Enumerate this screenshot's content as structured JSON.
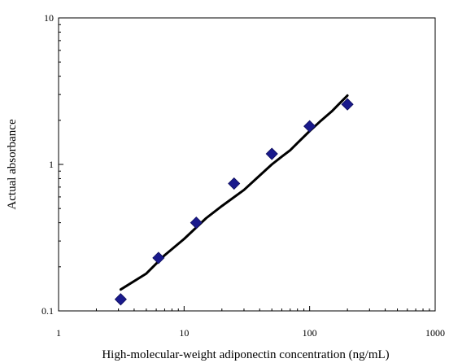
{
  "chart_data": {
    "type": "scatter",
    "title": "",
    "xlabel": "High-molecular-weight adiponectin concentration (ng/mL)",
    "ylabel": "Actual absorbance",
    "x_scale": "log",
    "y_scale": "log",
    "xlim": [
      1,
      1000
    ],
    "ylim": [
      0.1,
      10
    ],
    "x_ticks": [
      "1",
      "10",
      "100",
      "1000"
    ],
    "y_ticks": [
      "0.1",
      "1",
      "10"
    ],
    "grid": false,
    "legend": "none",
    "series": [
      {
        "type": "scatter",
        "marker": "diamond",
        "color": "#1a1a8c",
        "x": [
          3.125,
          6.25,
          12.5,
          25,
          50,
          100,
          200
        ],
        "y": [
          0.12,
          0.23,
          0.4,
          0.74,
          1.18,
          1.82,
          2.57
        ]
      },
      {
        "type": "line",
        "color": "#000000",
        "x": [
          3.125,
          5,
          7,
          10,
          15,
          20,
          30,
          40,
          50,
          60,
          70,
          80,
          100,
          120,
          150,
          180,
          200
        ],
        "y": [
          0.14,
          0.18,
          0.24,
          0.31,
          0.43,
          0.52,
          0.67,
          0.84,
          1.0,
          1.13,
          1.25,
          1.4,
          1.69,
          1.95,
          2.3,
          2.7,
          2.95
        ]
      }
    ]
  }
}
